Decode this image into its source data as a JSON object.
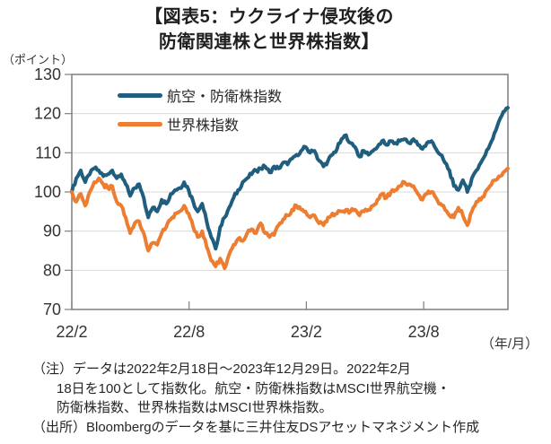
{
  "header": {
    "title_line1": "【図表5：ウクライナ侵攻後の",
    "title_line2": "防衛関連株と世界株指数】"
  },
  "chart_data": {
    "type": "line",
    "title": "図表5：ウクライナ侵攻後の防衛関連株と世界株指数",
    "y_unit_label": "（ポイント）",
    "x_unit_label": "（年/月）",
    "ylim": [
      70,
      130
    ],
    "yticks": [
      70,
      80,
      90,
      100,
      110,
      120,
      130
    ],
    "xticks": [
      {
        "label": "22/2",
        "month": 0
      },
      {
        "label": "22/8",
        "month": 6
      },
      {
        "label": "23/2",
        "month": 12
      },
      {
        "label": "23/8",
        "month": 18
      }
    ],
    "x_start": "2022-02-18",
    "x_end": "2023-12-29",
    "x_total_months": 22.31,
    "sampling": "weekly (values read from chart, indexed 2022/2/18 = 100)",
    "grid": true,
    "legend_position": "top-left-inside",
    "axis_color": "#7f7f7f",
    "grid_color": "#d9d9d9",
    "tick_label_color": "#333333",
    "series": [
      {
        "name": "航空・防衛株指数",
        "color": "#1f5e7e",
        "values": [
          100,
          103.5,
          105.5,
          102.5,
          104.5,
          106,
          105.5,
          104,
          104.5,
          105.5,
          103.5,
          104.5,
          102,
          99,
          101,
          102,
          98.5,
          93.5,
          96,
          95,
          98,
          97,
          99.5,
          100.5,
          101,
          102.5,
          100.5,
          97.5,
          95,
          97,
          92.5,
          88.5,
          85.5,
          91,
          93.5,
          96,
          98.5,
          100.5,
          102.5,
          103.5,
          104.5,
          105.5,
          106,
          106.5,
          105,
          106.5,
          106,
          107.5,
          107,
          108.5,
          109.5,
          110.5,
          111.5,
          110,
          110.5,
          108,
          106.5,
          108,
          109.5,
          111,
          113.5,
          114.5,
          112.5,
          111.5,
          109,
          110.5,
          109.5,
          110.5,
          111.5,
          113,
          112,
          113,
          112.5,
          113,
          113.5,
          112.5,
          113.5,
          112,
          111,
          112.5,
          113,
          111,
          109.5,
          107.5,
          105.5,
          101.5,
          100.5,
          103,
          100,
          103.5,
          105.5,
          107.5,
          109.5,
          112,
          115,
          118,
          120.5,
          121.5
        ]
      },
      {
        "name": "世界株指数",
        "color": "#ed7d31",
        "values": [
          100,
          97.5,
          99.5,
          96.5,
          100,
          102.5,
          103.5,
          102,
          101,
          101.5,
          97.5,
          96.5,
          93.5,
          89.5,
          92,
          92.5,
          89.5,
          85,
          87,
          86.5,
          89.5,
          91,
          93,
          94.5,
          95,
          96.5,
          94.5,
          91,
          88.5,
          90,
          86,
          82.5,
          81,
          83,
          80.5,
          84,
          86.5,
          88,
          87.5,
          89.5,
          90.5,
          89.5,
          92,
          89.5,
          88.5,
          89,
          91.5,
          93,
          94,
          95.5,
          96.5,
          95.5,
          95,
          93.5,
          94,
          92,
          91.5,
          93.5,
          94.5,
          94.5,
          95,
          95.5,
          95,
          95.5,
          94,
          95,
          95.5,
          96.5,
          98,
          99.5,
          98.5,
          100,
          100.5,
          101.5,
          102.5,
          102,
          101.5,
          99.5,
          98,
          99.5,
          100,
          98.5,
          97,
          95.5,
          94,
          93.5,
          96,
          94,
          91.5,
          95,
          97.5,
          98,
          100,
          101.5,
          103,
          104,
          105,
          106
        ]
      }
    ]
  },
  "notes": {
    "lines": [
      "（注）データは2022年2月18日～2023年12月29日。2022年2月",
      "18日を100として指数化。航空・防衛株指数はMSCI世界航空機・",
      "防衛株指数、世界株指数はMSCI世界株指数。",
      "（出所）Bloombergのデータを基に三井住友DSアセットマネジメント作成"
    ]
  }
}
